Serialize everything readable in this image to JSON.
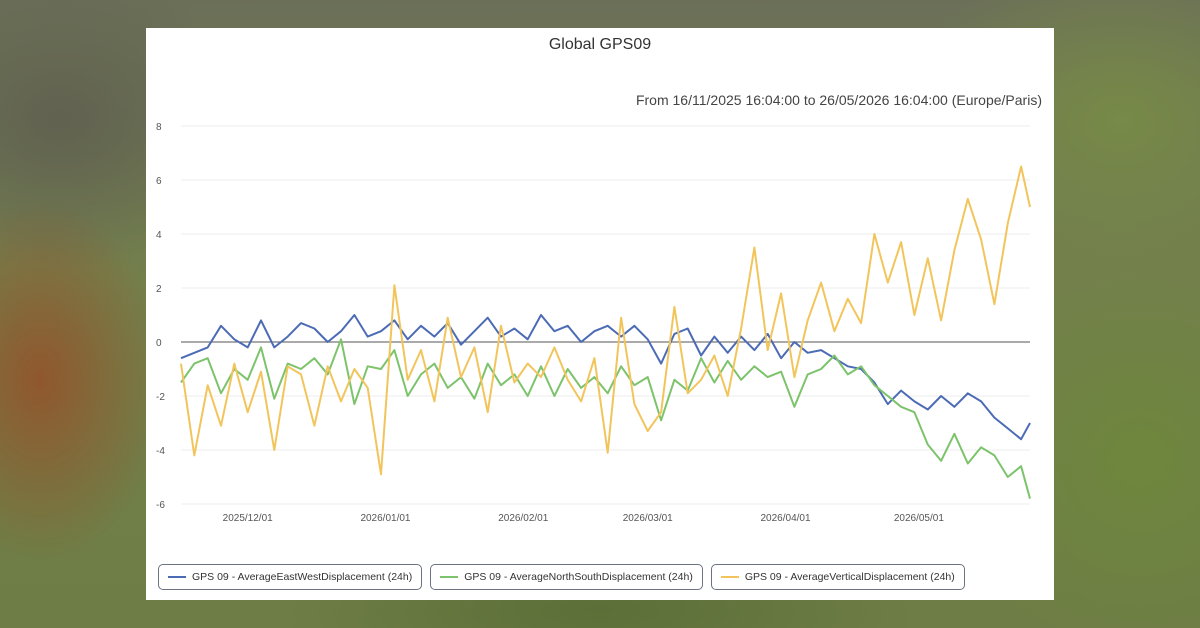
{
  "card": {
    "title": "Global GPS09",
    "subtitle": "From 16/11/2025 16:04:00 to 26/05/2026 16:04:00 (Europe/Paris)"
  },
  "chart_data": {
    "type": "line",
    "title": "Global GPS09",
    "subtitle": "From 16/11/2025 16:04:00 to 26/05/2026 16:04:00 (Europe/Paris)",
    "xlabel": "",
    "ylabel": "",
    "ylim": [
      -6,
      8
    ],
    "yticks": [
      "8",
      "6",
      "4",
      "2",
      "0",
      "-2",
      "-4",
      "-6"
    ],
    "xlim": [
      "2025-11-16",
      "2026-05-26"
    ],
    "xticks": [
      {
        "date": "2025-12-01",
        "label": "2025/12/01"
      },
      {
        "date": "2026-01-01",
        "label": "2026/01/01"
      },
      {
        "date": "2026-02-01",
        "label": "2026/02/01"
      },
      {
        "date": "2026-03-01",
        "label": "2026/03/01"
      },
      {
        "date": "2026-04-01",
        "label": "2026/04/01"
      },
      {
        "date": "2026-05-01",
        "label": "2026/05/01"
      }
    ],
    "grid": true,
    "legend_position": "bottom-left",
    "series": [
      {
        "name": "GPS 09 - AverageEastWestDisplacement (24h)",
        "color": "#4c6bb5",
        "points": [
          [
            "2025-11-16",
            -0.6
          ],
          [
            "2025-11-19",
            -0.4
          ],
          [
            "2025-11-22",
            -0.2
          ],
          [
            "2025-11-25",
            0.6
          ],
          [
            "2025-11-28",
            0.1
          ],
          [
            "2025-12-01",
            -0.2
          ],
          [
            "2025-12-04",
            0.8
          ],
          [
            "2025-12-07",
            -0.2
          ],
          [
            "2025-12-10",
            0.2
          ],
          [
            "2025-12-13",
            0.7
          ],
          [
            "2025-12-16",
            0.5
          ],
          [
            "2025-12-19",
            0.0
          ],
          [
            "2025-12-22",
            0.4
          ],
          [
            "2025-12-25",
            1.0
          ],
          [
            "2025-12-28",
            0.2
          ],
          [
            "2025-12-31",
            0.4
          ],
          [
            "2026-01-03",
            0.8
          ],
          [
            "2026-01-06",
            0.1
          ],
          [
            "2026-01-09",
            0.6
          ],
          [
            "2026-01-12",
            0.2
          ],
          [
            "2026-01-15",
            0.7
          ],
          [
            "2026-01-18",
            -0.1
          ],
          [
            "2026-01-21",
            0.4
          ],
          [
            "2026-01-24",
            0.9
          ],
          [
            "2026-01-27",
            0.2
          ],
          [
            "2026-01-30",
            0.5
          ],
          [
            "2026-02-02",
            0.1
          ],
          [
            "2026-02-05",
            1.0
          ],
          [
            "2026-02-08",
            0.4
          ],
          [
            "2026-02-11",
            0.6
          ],
          [
            "2026-02-14",
            0.0
          ],
          [
            "2026-02-17",
            0.4
          ],
          [
            "2026-02-20",
            0.6
          ],
          [
            "2026-02-23",
            0.2
          ],
          [
            "2026-02-26",
            0.6
          ],
          [
            "2026-03-01",
            0.1
          ],
          [
            "2026-03-04",
            -0.8
          ],
          [
            "2026-03-07",
            0.3
          ],
          [
            "2026-03-10",
            0.5
          ],
          [
            "2026-03-13",
            -0.5
          ],
          [
            "2026-03-16",
            0.2
          ],
          [
            "2026-03-19",
            -0.4
          ],
          [
            "2026-03-22",
            0.2
          ],
          [
            "2026-03-25",
            -0.3
          ],
          [
            "2026-03-28",
            0.3
          ],
          [
            "2026-03-31",
            -0.6
          ],
          [
            "2026-04-03",
            0.0
          ],
          [
            "2026-04-06",
            -0.4
          ],
          [
            "2026-04-09",
            -0.3
          ],
          [
            "2026-04-12",
            -0.6
          ],
          [
            "2026-04-15",
            -0.9
          ],
          [
            "2026-04-18",
            -1.0
          ],
          [
            "2026-04-21",
            -1.5
          ],
          [
            "2026-04-24",
            -2.3
          ],
          [
            "2026-04-27",
            -1.8
          ],
          [
            "2026-04-30",
            -2.2
          ],
          [
            "2026-05-03",
            -2.5
          ],
          [
            "2026-05-06",
            -2.0
          ],
          [
            "2026-05-09",
            -2.4
          ],
          [
            "2026-05-12",
            -1.9
          ],
          [
            "2026-05-15",
            -2.2
          ],
          [
            "2026-05-18",
            -2.8
          ],
          [
            "2026-05-21",
            -3.2
          ],
          [
            "2026-05-24",
            -3.6
          ],
          [
            "2026-05-26",
            -3.0
          ]
        ]
      },
      {
        "name": "GPS 09 - AverageNorthSouthDisplacement (24h)",
        "color": "#7cc36b",
        "points": [
          [
            "2025-11-16",
            -1.5
          ],
          [
            "2025-11-19",
            -0.8
          ],
          [
            "2025-11-22",
            -0.6
          ],
          [
            "2025-11-25",
            -1.9
          ],
          [
            "2025-11-28",
            -1.0
          ],
          [
            "2025-12-01",
            -1.4
          ],
          [
            "2025-12-04",
            -0.2
          ],
          [
            "2025-12-07",
            -2.1
          ],
          [
            "2025-12-10",
            -0.8
          ],
          [
            "2025-12-13",
            -1.0
          ],
          [
            "2025-12-16",
            -0.6
          ],
          [
            "2025-12-19",
            -1.2
          ],
          [
            "2025-12-22",
            0.1
          ],
          [
            "2025-12-25",
            -2.3
          ],
          [
            "2025-12-28",
            -0.9
          ],
          [
            "2025-12-31",
            -1.0
          ],
          [
            "2026-01-03",
            -0.3
          ],
          [
            "2026-01-06",
            -2.0
          ],
          [
            "2026-01-09",
            -1.2
          ],
          [
            "2026-01-12",
            -0.8
          ],
          [
            "2026-01-15",
            -1.7
          ],
          [
            "2026-01-18",
            -1.3
          ],
          [
            "2026-01-21",
            -2.1
          ],
          [
            "2026-01-24",
            -0.8
          ],
          [
            "2026-01-27",
            -1.6
          ],
          [
            "2026-01-30",
            -1.2
          ],
          [
            "2026-02-02",
            -2.0
          ],
          [
            "2026-02-05",
            -0.9
          ],
          [
            "2026-02-08",
            -2.0
          ],
          [
            "2026-02-11",
            -1.0
          ],
          [
            "2026-02-14",
            -1.7
          ],
          [
            "2026-02-17",
            -1.3
          ],
          [
            "2026-02-20",
            -1.9
          ],
          [
            "2026-02-23",
            -0.9
          ],
          [
            "2026-02-26",
            -1.6
          ],
          [
            "2026-03-01",
            -1.3
          ],
          [
            "2026-03-04",
            -2.9
          ],
          [
            "2026-03-07",
            -1.4
          ],
          [
            "2026-03-10",
            -1.8
          ],
          [
            "2026-03-13",
            -0.6
          ],
          [
            "2026-03-16",
            -1.5
          ],
          [
            "2026-03-19",
            -0.7
          ],
          [
            "2026-03-22",
            -1.4
          ],
          [
            "2026-03-25",
            -0.9
          ],
          [
            "2026-03-28",
            -1.3
          ],
          [
            "2026-03-31",
            -1.1
          ],
          [
            "2026-04-03",
            -2.4
          ],
          [
            "2026-04-06",
            -1.2
          ],
          [
            "2026-04-09",
            -1.0
          ],
          [
            "2026-04-12",
            -0.5
          ],
          [
            "2026-04-15",
            -1.2
          ],
          [
            "2026-04-18",
            -0.9
          ],
          [
            "2026-04-21",
            -1.6
          ],
          [
            "2026-04-24",
            -2.0
          ],
          [
            "2026-04-27",
            -2.4
          ],
          [
            "2026-04-30",
            -2.6
          ],
          [
            "2026-05-03",
            -3.8
          ],
          [
            "2026-05-06",
            -4.4
          ],
          [
            "2026-05-09",
            -3.4
          ],
          [
            "2026-05-12",
            -4.5
          ],
          [
            "2026-05-15",
            -3.9
          ],
          [
            "2026-05-18",
            -4.2
          ],
          [
            "2026-05-21",
            -5.0
          ],
          [
            "2026-05-24",
            -4.6
          ],
          [
            "2026-05-26",
            -5.8
          ]
        ]
      },
      {
        "name": "GPS 09 - AverageVerticalDisplacement (24h)",
        "color": "#f2c55c",
        "points": [
          [
            "2025-11-16",
            -0.8
          ],
          [
            "2025-11-19",
            -4.2
          ],
          [
            "2025-11-22",
            -1.6
          ],
          [
            "2025-11-25",
            -3.1
          ],
          [
            "2025-11-28",
            -0.8
          ],
          [
            "2025-12-01",
            -2.6
          ],
          [
            "2025-12-04",
            -1.1
          ],
          [
            "2025-12-07",
            -4.0
          ],
          [
            "2025-12-10",
            -0.9
          ],
          [
            "2025-12-13",
            -1.2
          ],
          [
            "2025-12-16",
            -3.1
          ],
          [
            "2025-12-19",
            -0.9
          ],
          [
            "2025-12-22",
            -2.2
          ],
          [
            "2025-12-25",
            -1.0
          ],
          [
            "2025-12-28",
            -1.7
          ],
          [
            "2025-12-31",
            -4.9
          ],
          [
            "2026-01-03",
            2.1
          ],
          [
            "2026-01-06",
            -1.4
          ],
          [
            "2026-01-09",
            -0.3
          ],
          [
            "2026-01-12",
            -2.2
          ],
          [
            "2026-01-15",
            0.9
          ],
          [
            "2026-01-18",
            -1.3
          ],
          [
            "2026-01-21",
            -0.2
          ],
          [
            "2026-01-24",
            -2.6
          ],
          [
            "2026-01-27",
            0.6
          ],
          [
            "2026-01-30",
            -1.5
          ],
          [
            "2026-02-02",
            -0.8
          ],
          [
            "2026-02-05",
            -1.3
          ],
          [
            "2026-02-08",
            -0.2
          ],
          [
            "2026-02-11",
            -1.4
          ],
          [
            "2026-02-14",
            -2.2
          ],
          [
            "2026-02-17",
            -0.6
          ],
          [
            "2026-02-20",
            -4.1
          ],
          [
            "2026-02-23",
            0.9
          ],
          [
            "2026-02-26",
            -2.3
          ],
          [
            "2026-03-01",
            -3.3
          ],
          [
            "2026-03-04",
            -2.6
          ],
          [
            "2026-03-07",
            1.3
          ],
          [
            "2026-03-10",
            -1.9
          ],
          [
            "2026-03-13",
            -1.4
          ],
          [
            "2026-03-16",
            -0.5
          ],
          [
            "2026-03-19",
            -2.0
          ],
          [
            "2026-03-22",
            0.5
          ],
          [
            "2026-03-25",
            3.5
          ],
          [
            "2026-03-28",
            -0.3
          ],
          [
            "2026-03-31",
            1.8
          ],
          [
            "2026-04-03",
            -1.3
          ],
          [
            "2026-04-06",
            0.8
          ],
          [
            "2026-04-09",
            2.2
          ],
          [
            "2026-04-12",
            0.4
          ],
          [
            "2026-04-15",
            1.6
          ],
          [
            "2026-04-18",
            0.7
          ],
          [
            "2026-04-21",
            4.0
          ],
          [
            "2026-04-24",
            2.2
          ],
          [
            "2026-04-27",
            3.7
          ],
          [
            "2026-04-30",
            1.0
          ],
          [
            "2026-05-03",
            3.1
          ],
          [
            "2026-05-06",
            0.8
          ],
          [
            "2026-05-09",
            3.4
          ],
          [
            "2026-05-12",
            5.3
          ],
          [
            "2026-05-15",
            3.8
          ],
          [
            "2026-05-18",
            1.4
          ],
          [
            "2026-05-21",
            4.4
          ],
          [
            "2026-05-24",
            6.5
          ],
          [
            "2026-05-26",
            5.0
          ]
        ]
      }
    ]
  }
}
